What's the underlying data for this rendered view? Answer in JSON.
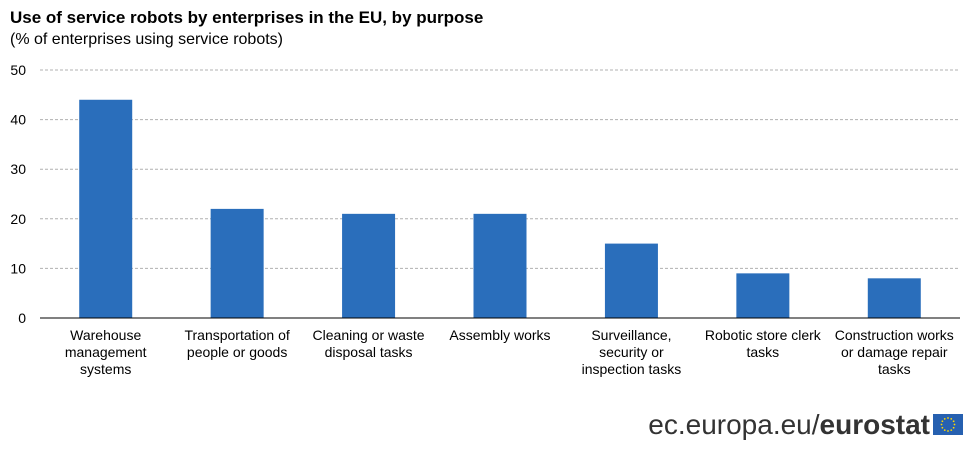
{
  "header": {
    "title": "Use of service robots by enterprises in the EU, by purpose",
    "subtitle": "(% of enterprises using service robots)"
  },
  "footer": {
    "site": "ec.europa.eu/",
    "brand": "eurostat",
    "flag_icon": "eu-flag-icon"
  },
  "colors": {
    "bar": "#2a6ebb",
    "grid": "#b0b0b0",
    "flag_blue": "#2660b0",
    "flag_star": "#ffd700"
  },
  "chart_data": {
    "type": "bar",
    "title": "Use of service robots by enterprises in the EU, by purpose",
    "subtitle": "(% of enterprises using service robots)",
    "xlabel": "",
    "ylabel": "",
    "ylim": [
      0,
      50
    ],
    "yticks": [
      0,
      10,
      20,
      30,
      40,
      50
    ],
    "grid": true,
    "legend": "none",
    "categories": [
      "Warehouse management systems",
      "Transportation of people or goods",
      "Cleaning or waste disposal tasks",
      "Assembly works",
      "Surveillance, security or inspection tasks",
      "Robotic store clerk tasks",
      "Construction works or damage repair tasks"
    ],
    "values": [
      44,
      22,
      21,
      21,
      15,
      9,
      8
    ]
  }
}
